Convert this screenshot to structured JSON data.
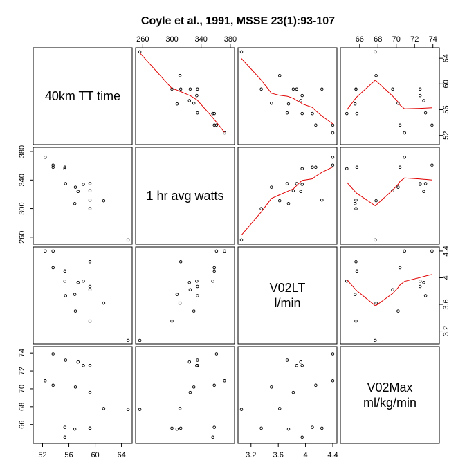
{
  "chart_data": {
    "type": "scatter-matrix",
    "title": "Coyle et al., 1991, MSSE 23(1):93-107",
    "smoother": "lowess",
    "variables": [
      {
        "key": "tt",
        "label_lines": [
          "40km TT time"
        ],
        "range": [
          51,
          65.2
        ],
        "ticks": [
          52,
          56,
          60,
          64
        ]
      },
      {
        "key": "watts",
        "label_lines": [
          "1 hr avg watts"
        ],
        "range": [
          254,
          382
        ],
        "ticks": [
          260,
          300,
          340,
          380
        ]
      },
      {
        "key": "vo2lt",
        "label_lines": [
          "V02LT",
          "l/min"
        ],
        "range": [
          3.05,
          4.42
        ],
        "ticks": [
          3.2,
          3.6,
          4.0,
          4.4
        ]
      },
      {
        "key": "vo2max",
        "label_lines": [
          "V02Max",
          "ml/kg/min"
        ],
        "range": [
          64.2,
          74.4
        ],
        "ticks": [
          66,
          68,
          70,
          72,
          74
        ]
      }
    ],
    "observations": [
      {
        "tt": 65.0,
        "watts": 256,
        "vo2lt": 3.06,
        "vo2max": 67.7
      },
      {
        "tt": 52.4,
        "watts": 372,
        "vo2lt": 4.4,
        "vo2max": 70.9
      },
      {
        "tt": 53.6,
        "watts": 361,
        "vo2lt": 4.4,
        "vo2max": 73.9
      },
      {
        "tt": 53.6,
        "watts": 358,
        "vo2lt": 4.15,
        "vo2max": 70.4
      },
      {
        "tt": 55.4,
        "watts": 358,
        "vo2lt": 4.1,
        "vo2max": 65.7
      },
      {
        "tt": 55.4,
        "watts": 356,
        "vo2lt": 3.95,
        "vo2max": 64.6
      },
      {
        "tt": 55.5,
        "watts": 335,
        "vo2lt": 3.73,
        "vo2max": 73.2
      },
      {
        "tt": 57.0,
        "watts": 330,
        "vo2lt": 3.5,
        "vo2max": 70.2
      },
      {
        "tt": 57.4,
        "watts": 324,
        "vo2lt": 3.93,
        "vo2max": 73.0
      },
      {
        "tt": 56.9,
        "watts": 307,
        "vo2lt": 3.75,
        "vo2max": 65.5
      },
      {
        "tt": 58.2,
        "watts": 334,
        "vo2lt": 3.95,
        "vo2max": 72.6
      },
      {
        "tt": 59.2,
        "watts": 335,
        "vo2lt": 3.87,
        "vo2max": 72.6
      },
      {
        "tt": 59.2,
        "watts": 325,
        "vo2lt": 3.82,
        "vo2max": 69.6
      },
      {
        "tt": 59.2,
        "watts": 300,
        "vo2lt": 3.35,
        "vo2max": 65.6
      },
      {
        "tt": 59.2,
        "watts": 312,
        "vo2lt": 4.24,
        "vo2max": 65.6
      },
      {
        "tt": 61.3,
        "watts": 311,
        "vo2lt": 3.62,
        "vo2max": 67.8
      }
    ]
  }
}
